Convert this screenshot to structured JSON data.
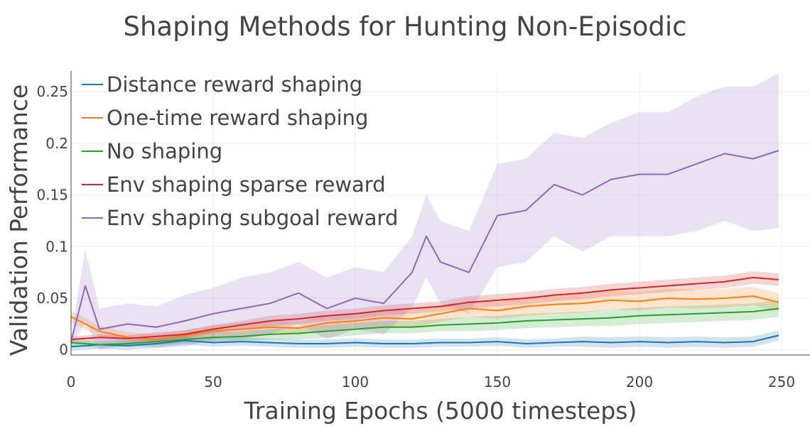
{
  "chart_data": {
    "type": "line",
    "title": "Shaping Methods for Hunting Non-Episodic",
    "xlabel": "Training Epochs (5000 timesteps)",
    "ylabel": "Validation Performance",
    "xlim": [
      0,
      260
    ],
    "ylim": [
      -0.005,
      0.27
    ],
    "xticks": [
      0,
      50,
      100,
      150,
      200,
      250
    ],
    "xtick_labels": [
      "0",
      "50",
      "100",
      "150",
      "200",
      "250"
    ],
    "yticks": [
      0,
      0.05,
      0.1,
      0.15,
      0.2,
      0.25
    ],
    "ytick_labels": [
      "0",
      "0.05",
      "0.1",
      "0.15",
      "0.2",
      "0.25"
    ],
    "grid": true,
    "legend_position": "top-left",
    "series": [
      {
        "name": "Distance reward shaping",
        "color": "#1f77b4",
        "x": [
          0,
          10,
          20,
          30,
          40,
          50,
          60,
          70,
          80,
          90,
          100,
          110,
          120,
          130,
          140,
          150,
          160,
          170,
          180,
          190,
          200,
          210,
          220,
          230,
          240,
          249
        ],
        "y": [
          0.003,
          0.005,
          0.004,
          0.006,
          0.009,
          0.007,
          0.008,
          0.007,
          0.006,
          0.006,
          0.007,
          0.006,
          0.006,
          0.007,
          0.007,
          0.008,
          0.006,
          0.007,
          0.008,
          0.007,
          0.008,
          0.007,
          0.008,
          0.007,
          0.008,
          0.014
        ],
        "band": [
          0.004,
          0.004,
          0.004,
          0.004,
          0.004,
          0.004,
          0.004,
          0.004,
          0.004,
          0.004,
          0.004,
          0.004,
          0.004,
          0.004,
          0.004,
          0.004,
          0.004,
          0.004,
          0.005,
          0.005,
          0.005,
          0.005,
          0.005,
          0.005,
          0.005,
          0.005
        ]
      },
      {
        "name": "One-time reward shaping",
        "color": "#ff7f0e",
        "x": [
          0,
          10,
          20,
          30,
          40,
          50,
          60,
          70,
          80,
          90,
          100,
          110,
          120,
          130,
          140,
          150,
          160,
          170,
          180,
          190,
          200,
          210,
          220,
          230,
          240,
          249
        ],
        "y": [
          0.032,
          0.018,
          0.012,
          0.01,
          0.014,
          0.018,
          0.02,
          0.022,
          0.021,
          0.026,
          0.028,
          0.031,
          0.03,
          0.035,
          0.04,
          0.038,
          0.042,
          0.044,
          0.045,
          0.048,
          0.047,
          0.05,
          0.049,
          0.05,
          0.052,
          0.046
        ],
        "band": [
          0.006,
          0.005,
          0.005,
          0.005,
          0.005,
          0.006,
          0.006,
          0.006,
          0.006,
          0.007,
          0.007,
          0.008,
          0.008,
          0.008,
          0.008,
          0.008,
          0.009,
          0.009,
          0.009,
          0.009,
          0.009,
          0.009,
          0.009,
          0.009,
          0.009,
          0.009
        ]
      },
      {
        "name": "No shaping",
        "color": "#2ca02c",
        "x": [
          0,
          10,
          20,
          30,
          40,
          50,
          60,
          70,
          80,
          90,
          100,
          110,
          120,
          130,
          140,
          150,
          160,
          170,
          180,
          190,
          200,
          210,
          220,
          230,
          240,
          249
        ],
        "y": [
          0.007,
          0.005,
          0.006,
          0.008,
          0.01,
          0.012,
          0.013,
          0.015,
          0.016,
          0.018,
          0.02,
          0.022,
          0.022,
          0.024,
          0.025,
          0.026,
          0.028,
          0.029,
          0.03,
          0.031,
          0.033,
          0.034,
          0.035,
          0.036,
          0.037,
          0.04
        ],
        "band": [
          0.003,
          0.003,
          0.003,
          0.004,
          0.004,
          0.005,
          0.005,
          0.005,
          0.006,
          0.006,
          0.006,
          0.006,
          0.006,
          0.006,
          0.007,
          0.007,
          0.007,
          0.007,
          0.007,
          0.008,
          0.008,
          0.008,
          0.008,
          0.008,
          0.008,
          0.008
        ]
      },
      {
        "name": "Env shaping sparse reward",
        "color": "#d62728",
        "x": [
          0,
          10,
          20,
          30,
          40,
          50,
          60,
          70,
          80,
          90,
          100,
          110,
          120,
          130,
          140,
          150,
          160,
          170,
          180,
          190,
          200,
          210,
          220,
          230,
          240,
          249
        ],
        "y": [
          0.01,
          0.012,
          0.011,
          0.013,
          0.015,
          0.02,
          0.024,
          0.028,
          0.03,
          0.033,
          0.035,
          0.038,
          0.04,
          0.042,
          0.046,
          0.048,
          0.05,
          0.053,
          0.055,
          0.058,
          0.06,
          0.062,
          0.064,
          0.066,
          0.07,
          0.068
        ],
        "band": [
          0.003,
          0.003,
          0.003,
          0.004,
          0.004,
          0.004,
          0.004,
          0.005,
          0.005,
          0.005,
          0.005,
          0.005,
          0.005,
          0.005,
          0.006,
          0.006,
          0.006,
          0.006,
          0.006,
          0.006,
          0.006,
          0.006,
          0.006,
          0.006,
          0.006,
          0.006
        ]
      },
      {
        "name": "Env shaping subgoal reward",
        "color": "#9467bd",
        "x": [
          0,
          5,
          10,
          20,
          30,
          40,
          50,
          60,
          70,
          80,
          90,
          100,
          110,
          120,
          125,
          130,
          140,
          150,
          160,
          170,
          180,
          190,
          200,
          210,
          220,
          230,
          240,
          249
        ],
        "y": [
          0.008,
          0.062,
          0.02,
          0.025,
          0.022,
          0.028,
          0.035,
          0.04,
          0.045,
          0.055,
          0.04,
          0.05,
          0.045,
          0.075,
          0.11,
          0.085,
          0.075,
          0.13,
          0.135,
          0.16,
          0.15,
          0.165,
          0.17,
          0.17,
          0.18,
          0.19,
          0.185,
          0.193
        ],
        "band": [
          0.005,
          0.035,
          0.02,
          0.02,
          0.02,
          0.025,
          0.025,
          0.03,
          0.03,
          0.03,
          0.03,
          0.03,
          0.03,
          0.035,
          0.04,
          0.04,
          0.04,
          0.05,
          0.05,
          0.05,
          0.055,
          0.055,
          0.06,
          0.06,
          0.065,
          0.065,
          0.07,
          0.075
        ]
      }
    ]
  }
}
